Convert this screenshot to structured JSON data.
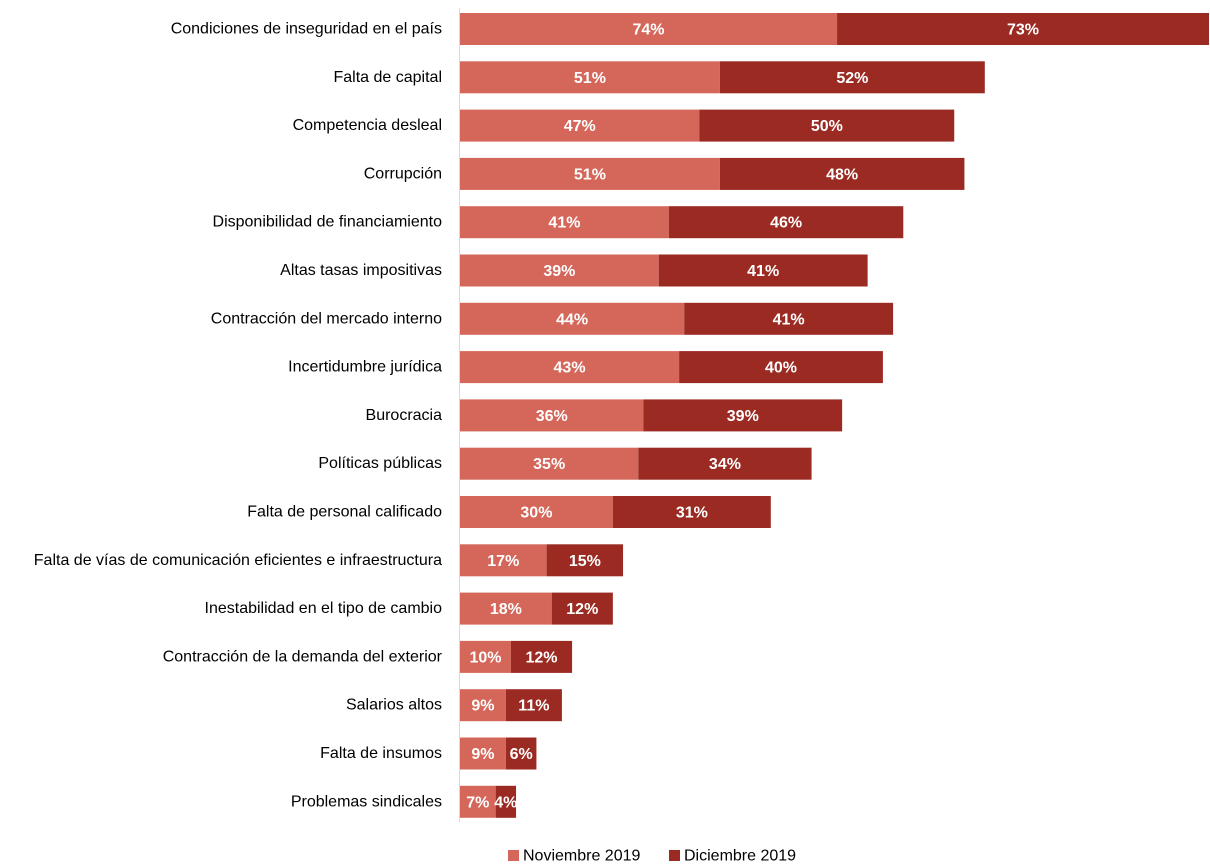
{
  "chart_data": {
    "type": "bar",
    "orientation": "horizontal",
    "stacked": true,
    "categories": [
      "Condiciones de inseguridad en el país",
      "Falta de capital",
      "Competencia desleal",
      "Corrupción",
      "Disponibilidad de financiamiento",
      "Altas tasas impositivas",
      "Contracción del mercado interno",
      "Incertidumbre jurídica",
      "Burocracia",
      "Políticas públicas",
      "Falta de personal calificado",
      "Falta de vías de comunicación eficientes e infraestructura",
      "Inestabilidad en el tipo de cambio",
      "Contracción de la demanda del exterior",
      "Salarios altos",
      "Falta de insumos",
      "Problemas sindicales"
    ],
    "series": [
      {
        "name": "Noviembre 2019",
        "color": "#d4675a",
        "values": [
          74,
          51,
          47,
          51,
          41,
          39,
          44,
          43,
          36,
          35,
          30,
          17,
          18,
          10,
          9,
          9,
          7
        ],
        "labels": [
          "74%",
          "51%",
          "47%",
          "51%",
          "41%",
          "39%",
          "44%",
          "43%",
          "36%",
          "35%",
          "30%",
          "17%",
          "18%",
          "10%",
          "9%",
          "9%",
          "7%"
        ]
      },
      {
        "name": "Diciembre 2019",
        "color": "#9b2a22",
        "values": [
          73,
          52,
          50,
          48,
          46,
          41,
          41,
          40,
          39,
          34,
          31,
          15,
          12,
          12,
          11,
          6,
          4
        ],
        "labels": [
          "73%",
          "52%",
          "50%",
          "48%",
          "46%",
          "41%",
          "41%",
          "40%",
          "39%",
          "34%",
          "31%",
          "15%",
          "12%",
          "12%",
          "11%",
          "6%",
          "4%"
        ]
      }
    ],
    "xlim": [
      0,
      147
    ],
    "grid": false,
    "legend": "bottom-center"
  }
}
